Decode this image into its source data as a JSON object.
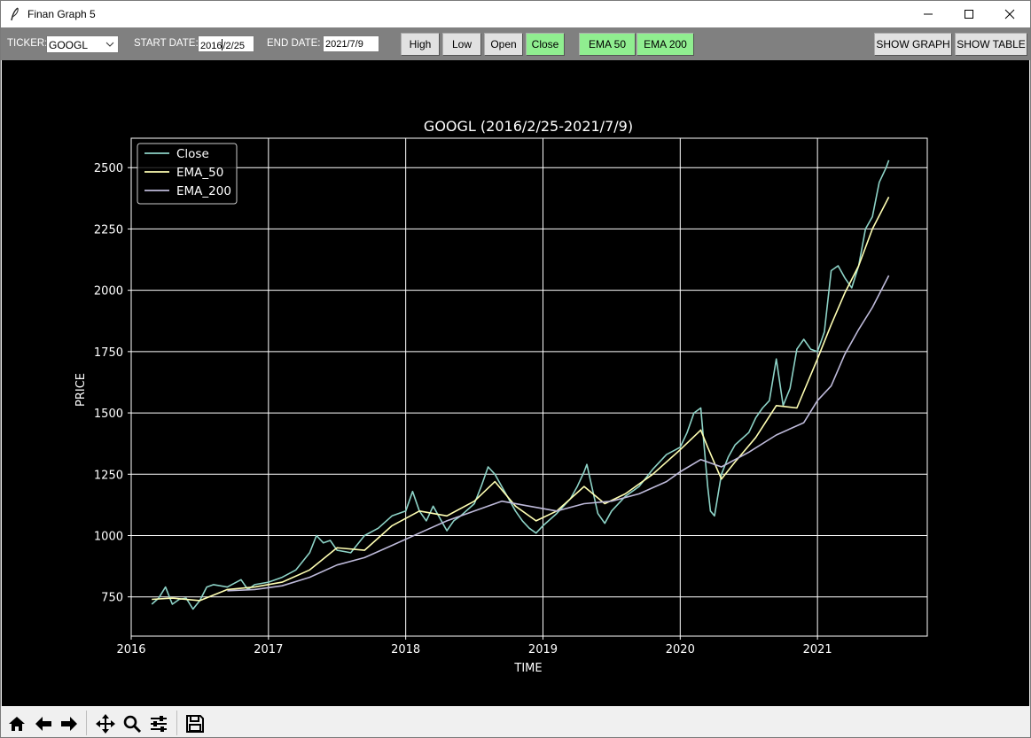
{
  "window": {
    "title": "Finan Graph 5"
  },
  "controls": {
    "ticker_label": "TICKER:",
    "ticker_value": "GOOGL",
    "start_label": "START DATE:",
    "start_before_caret": "2016",
    "start_after_caret": "/2/25",
    "end_label": "END DATE:",
    "end_value": "2021/7/9",
    "buttons": [
      "High",
      "Low",
      "Open",
      "Close",
      "EMA 50",
      "EMA 200"
    ],
    "active_buttons": [
      "Close",
      "EMA 50",
      "EMA 200"
    ],
    "show_graph": "SHOW GRAPH",
    "show_table": "SHOW TABLE"
  },
  "icons": [
    "home-icon",
    "back-arrow-icon",
    "forward-arrow-icon",
    "pan-icon",
    "zoom-icon",
    "configure-subplots-icon",
    "save-icon"
  ],
  "colors": {
    "close": "#8dd3c7",
    "ema50": "#ffffb3",
    "ema200": "#bebada",
    "button_active": "#90ee90",
    "plot_bg": "#000000"
  },
  "chart_data": {
    "type": "line",
    "title": "GOOGL (2016/2/25-2021/7/9)",
    "xlabel": "TIME",
    "ylabel": "PRICE",
    "xlim": [
      2016.0,
      2021.8
    ],
    "ylim": [
      590,
      2620
    ],
    "x_ticks": [
      2016,
      2017,
      2018,
      2019,
      2020,
      2021
    ],
    "x_tick_labels": [
      "2016",
      "2017",
      "2018",
      "2019",
      "2020",
      "2021"
    ],
    "y_ticks": [
      750,
      1000,
      1250,
      1500,
      1750,
      2000,
      2250,
      2500
    ],
    "y_tick_labels": [
      "750",
      "1000",
      "1250",
      "1500",
      "1750",
      "2000",
      "2250",
      "2500"
    ],
    "grid": true,
    "legend": "upper left",
    "series": [
      {
        "name": "Close",
        "color": "#8dd3c7",
        "x": [
          2016.15,
          2016.2,
          2016.25,
          2016.3,
          2016.35,
          2016.4,
          2016.45,
          2016.5,
          2016.55,
          2016.6,
          2016.7,
          2016.8,
          2016.85,
          2016.9,
          2017.0,
          2017.1,
          2017.2,
          2017.3,
          2017.35,
          2017.4,
          2017.45,
          2017.5,
          2017.6,
          2017.7,
          2017.8,
          2017.9,
          2018.0,
          2018.05,
          2018.1,
          2018.15,
          2018.2,
          2018.3,
          2018.35,
          2018.4,
          2018.5,
          2018.55,
          2018.6,
          2018.65,
          2018.7,
          2018.75,
          2018.8,
          2018.85,
          2018.9,
          2018.95,
          2019.0,
          2019.1,
          2019.2,
          2019.25,
          2019.3,
          2019.32,
          2019.4,
          2019.45,
          2019.5,
          2019.6,
          2019.7,
          2019.8,
          2019.9,
          2020.0,
          2020.05,
          2020.1,
          2020.15,
          2020.2,
          2020.22,
          2020.25,
          2020.3,
          2020.35,
          2020.4,
          2020.5,
          2020.55,
          2020.6,
          2020.65,
          2020.7,
          2020.75,
          2020.8,
          2020.85,
          2020.9,
          2020.95,
          2021.0,
          2021.05,
          2021.1,
          2021.15,
          2021.2,
          2021.25,
          2021.3,
          2021.35,
          2021.4,
          2021.45,
          2021.5,
          2021.52
        ],
        "y": [
          720,
          745,
          790,
          720,
          740,
          745,
          700,
          735,
          790,
          800,
          790,
          820,
          780,
          800,
          810,
          830,
          860,
          930,
          1000,
          970,
          980,
          940,
          930,
          1000,
          1030,
          1080,
          1100,
          1180,
          1100,
          1060,
          1120,
          1020,
          1060,
          1080,
          1130,
          1200,
          1280,
          1250,
          1200,
          1150,
          1100,
          1060,
          1030,
          1010,
          1040,
          1090,
          1150,
          1200,
          1260,
          1290,
          1090,
          1050,
          1100,
          1160,
          1200,
          1270,
          1330,
          1360,
          1420,
          1500,
          1520,
          1200,
          1100,
          1080,
          1250,
          1320,
          1370,
          1420,
          1480,
          1520,
          1550,
          1720,
          1530,
          1600,
          1760,
          1800,
          1760,
          1750,
          1830,
          2080,
          2100,
          2050,
          2010,
          2100,
          2250,
          2300,
          2440,
          2500,
          2530
        ]
      },
      {
        "name": "EMA_50",
        "color": "#ffffb3",
        "x": [
          2016.15,
          2016.3,
          2016.5,
          2016.7,
          2016.9,
          2017.1,
          2017.3,
          2017.5,
          2017.7,
          2017.9,
          2018.1,
          2018.3,
          2018.5,
          2018.65,
          2018.8,
          2018.95,
          2019.1,
          2019.3,
          2019.45,
          2019.6,
          2019.8,
          2020.0,
          2020.15,
          2020.2,
          2020.3,
          2020.4,
          2020.55,
          2020.7,
          2020.85,
          2021.0,
          2021.1,
          2021.2,
          2021.3,
          2021.4,
          2021.52
        ],
        "y": [
          740,
          745,
          735,
          780,
          790,
          810,
          860,
          950,
          940,
          1040,
          1100,
          1080,
          1140,
          1220,
          1120,
          1060,
          1100,
          1200,
          1130,
          1170,
          1250,
          1350,
          1430,
          1360,
          1230,
          1300,
          1400,
          1530,
          1520,
          1720,
          1860,
          1990,
          2100,
          2250,
          2380
        ]
      },
      {
        "name": "EMA_200",
        "color": "#bebada",
        "x": [
          2016.7,
          2016.9,
          2017.1,
          2017.3,
          2017.5,
          2017.7,
          2017.9,
          2018.1,
          2018.3,
          2018.5,
          2018.7,
          2018.9,
          2019.1,
          2019.3,
          2019.5,
          2019.7,
          2019.9,
          2020.0,
          2020.15,
          2020.3,
          2020.5,
          2020.7,
          2020.9,
          2021.0,
          2021.1,
          2021.2,
          2021.3,
          2021.4,
          2021.52
        ],
        "y": [
          775,
          780,
          795,
          830,
          880,
          910,
          960,
          1010,
          1060,
          1100,
          1140,
          1120,
          1100,
          1130,
          1140,
          1170,
          1220,
          1260,
          1310,
          1280,
          1340,
          1410,
          1460,
          1550,
          1610,
          1740,
          1840,
          1930,
          2060
        ]
      }
    ]
  }
}
